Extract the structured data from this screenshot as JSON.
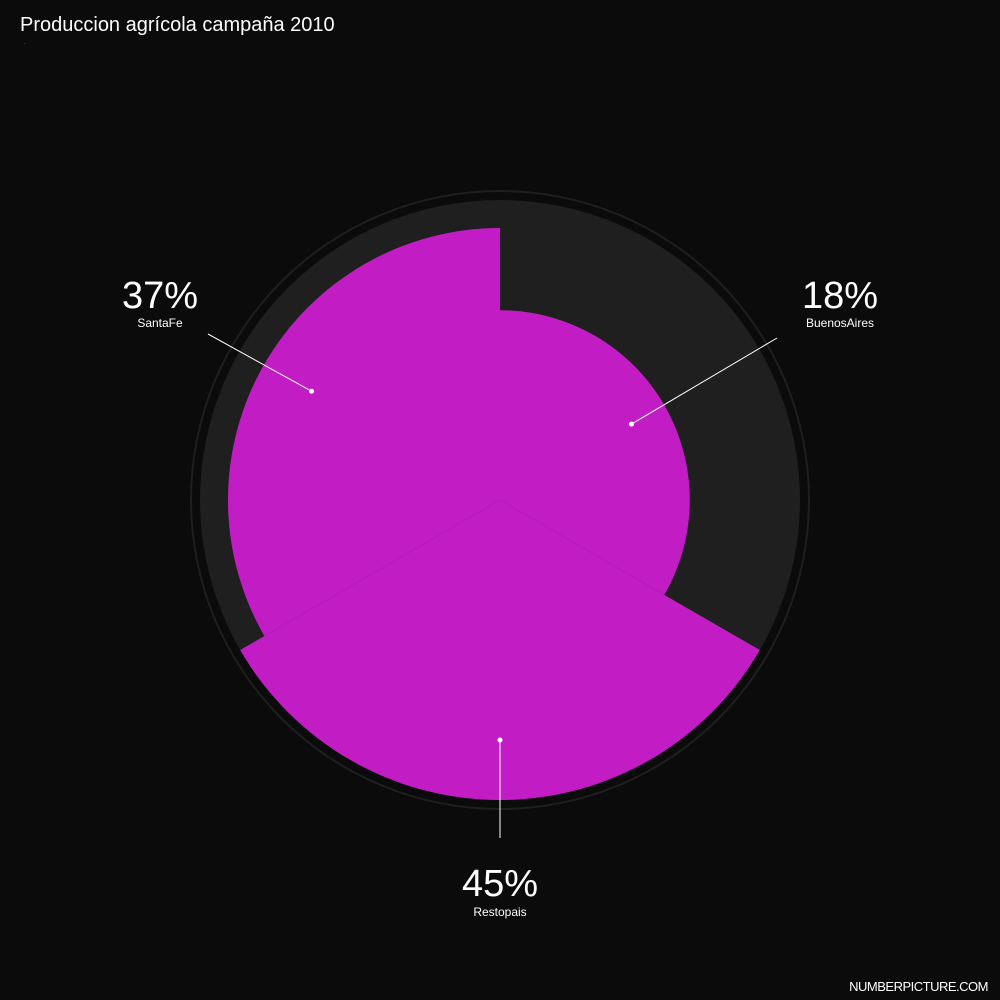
{
  "header": {
    "title": "Produccion agrícola campaña 2010",
    "subtitle": "."
  },
  "footer": {
    "brand": "NUMBERPICTURE.COM"
  },
  "colors": {
    "background": "#0b0b0b",
    "ring": "#1f1f1f",
    "slice": "#c21dc4",
    "leader": "#ffffff"
  },
  "chart_data": {
    "type": "pie",
    "variant": "polar-area",
    "slices": [
      {
        "label": "BuenosAires",
        "value": 18,
        "percent_label": "18%"
      },
      {
        "label": "Restopais",
        "value": 45,
        "percent_label": "45%"
      },
      {
        "label": "SantaFe",
        "value": 37,
        "percent_label": "37%"
      }
    ],
    "max_value": 45
  }
}
